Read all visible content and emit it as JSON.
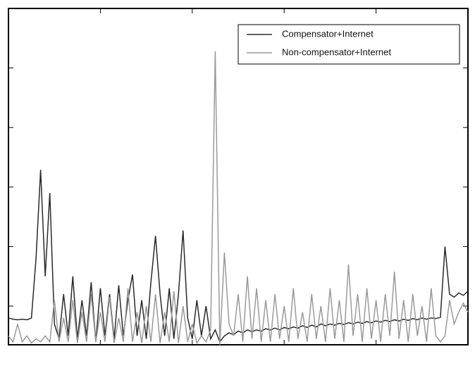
{
  "chart_data": {
    "type": "line",
    "x": [
      0,
      0.05,
      0.1,
      0.15,
      0.2,
      0.25,
      0.3,
      0.35,
      0.4,
      0.45,
      0.5,
      0.55,
      0.6,
      0.65,
      0.7,
      0.75,
      0.8,
      0.85,
      0.9,
      0.95,
      1,
      1.05,
      1.1,
      1.15,
      1.2,
      1.25,
      1.3,
      1.35,
      1.4,
      1.45,
      1.5,
      1.55,
      1.6,
      1.65,
      1.7,
      1.75,
      1.8,
      1.85,
      1.9,
      1.95,
      2,
      2.05,
      2.1,
      2.15,
      2.2,
      2.25,
      2.3,
      2.35,
      2.4,
      2.45,
      2.5,
      2.55,
      2.6,
      2.65,
      2.7,
      2.75,
      2.8,
      2.85,
      2.9,
      2.95,
      3,
      3.05,
      3.1,
      3.15,
      3.2,
      3.25,
      3.3,
      3.35,
      3.4,
      3.45,
      3.5,
      3.55,
      3.6,
      3.65,
      3.7,
      3.75,
      3.8,
      3.85,
      3.9,
      3.95,
      4,
      4.05,
      4.1,
      4.15,
      4.2,
      4.25,
      4.3,
      4.35,
      4.4,
      4.45,
      4.5,
      4.55,
      4.6,
      4.65,
      4.7,
      4.75,
      4.8,
      4.85,
      4.9,
      4.95,
      5
    ],
    "series": [
      {
        "name": "Compensator+Internet",
        "color": "#2a2a2a",
        "values": [
          -0.2,
          -0.22,
          -0.23,
          -0.22,
          -0.23,
          -0.2,
          0.8,
          2.29,
          0.5,
          1.9,
          -0.3,
          -0.55,
          0.2,
          -0.5,
          0.5,
          -0.55,
          0.1,
          -0.5,
          0.4,
          -0.6,
          0.3,
          -0.5,
          0.2,
          -0.55,
          0.35,
          -0.5,
          0.1,
          0.53,
          -0.5,
          0.1,
          -0.55,
          0.4,
          1.18,
          0.2,
          -0.5,
          0.3,
          -0.55,
          0.2,
          1.27,
          -0.2,
          -0.55,
          0.1,
          -0.5,
          0.0,
          -0.55,
          -0.4,
          -0.6,
          -0.5,
          -0.45,
          -0.48,
          -0.42,
          -0.45,
          -0.4,
          -0.43,
          -0.4,
          -0.42,
          -0.38,
          -0.4,
          -0.37,
          -0.4,
          -0.36,
          -0.38,
          -0.35,
          -0.37,
          -0.33,
          -0.36,
          -0.32,
          -0.35,
          -0.3,
          -0.33,
          -0.3,
          -0.32,
          -0.29,
          -0.31,
          -0.28,
          -0.3,
          -0.27,
          -0.29,
          -0.26,
          -0.28,
          -0.25,
          -0.27,
          -0.24,
          -0.26,
          -0.23,
          -0.25,
          -0.22,
          -0.24,
          -0.21,
          -0.23,
          -0.2,
          -0.22,
          -0.2,
          -0.21,
          -0.19,
          1.0,
          0.2,
          0.15,
          0.22,
          0.18,
          0.25
        ]
      },
      {
        "name": "Non-compensator+Internet",
        "color": "#9a9a9a",
        "values": [
          -0.5,
          -0.6,
          -0.3,
          -0.6,
          -0.5,
          -0.62,
          -0.55,
          -0.6,
          -0.5,
          -0.6,
          0.1,
          -0.6,
          -0.2,
          -0.6,
          0.1,
          -0.62,
          -0.1,
          -0.6,
          0.2,
          -0.6,
          -0.1,
          -0.6,
          0.15,
          -0.62,
          -0.2,
          -0.6,
          0.3,
          -0.6,
          -0.1,
          -0.62,
          0.0,
          -0.6,
          0.2,
          -0.62,
          -0.1,
          -0.6,
          0.25,
          -0.62,
          0.0,
          -0.6,
          -0.3,
          -0.62,
          -0.5,
          -0.6,
          -0.4,
          4.28,
          -0.65,
          0.9,
          -0.3,
          -0.5,
          0.2,
          -0.6,
          0.5,
          -0.55,
          0.3,
          -0.6,
          0.1,
          -0.6,
          0.2,
          -0.55,
          0.0,
          -0.6,
          0.3,
          -0.55,
          -0.1,
          -0.6,
          0.2,
          -0.55,
          0.0,
          -0.6,
          0.3,
          -0.55,
          0.1,
          -0.6,
          0.7,
          -0.5,
          0.2,
          -0.6,
          0.3,
          -0.55,
          0.1,
          -0.6,
          0.2,
          -0.5,
          0.58,
          -0.55,
          0.1,
          -0.6,
          0.2,
          -0.5,
          0.0,
          -0.6,
          0.3,
          -0.5,
          -0.6,
          -0.5,
          0.1,
          -0.3,
          -0.1,
          0.05,
          -0.1
        ]
      }
    ],
    "xlim": [
      0,
      5
    ],
    "xticks": [
      1,
      2,
      3,
      4
    ],
    "ylim": [
      -0.65,
      5
    ],
    "yticks": [
      0,
      1,
      2,
      3,
      4
    ],
    "legend": "upper-right"
  }
}
